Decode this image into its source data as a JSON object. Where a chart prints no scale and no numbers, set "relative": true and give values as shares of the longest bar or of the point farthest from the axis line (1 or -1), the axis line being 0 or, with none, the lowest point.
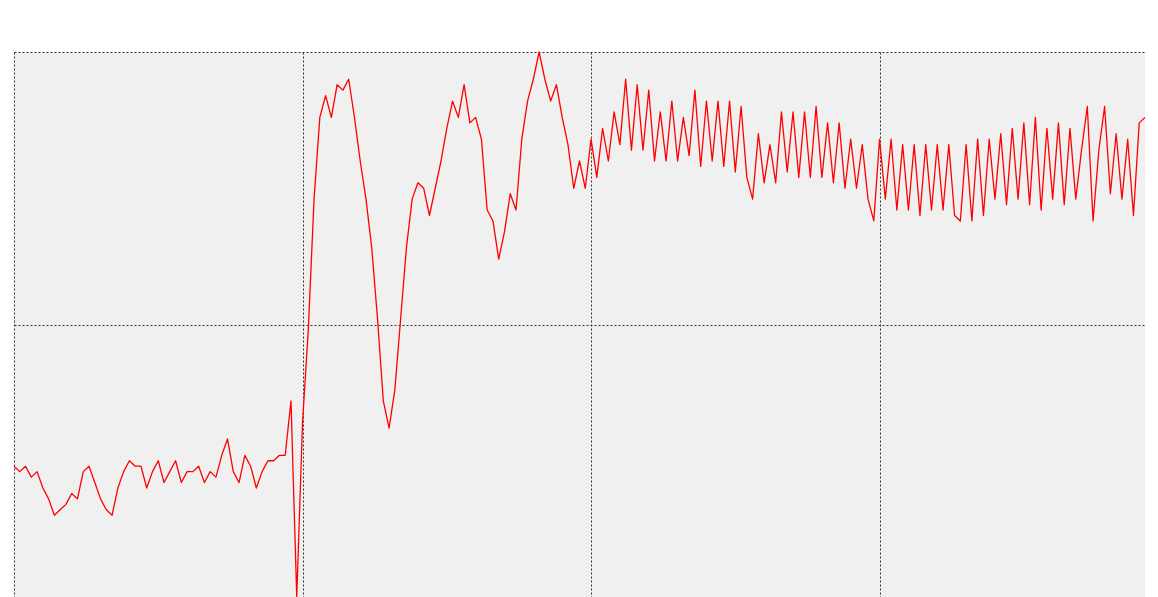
{
  "chart_data": {
    "type": "line",
    "relative": true,
    "grid": true,
    "tick_labels": false,
    "line_style": "solid",
    "categories": [
      null,
      null,
      null,
      null,
      null,
      null,
      null,
      null,
      null,
      null,
      null,
      null,
      null,
      null,
      null,
      null,
      null,
      null,
      null,
      null,
      null,
      null,
      null,
      null,
      null,
      null,
      null,
      null,
      null,
      null,
      null,
      null,
      null,
      null,
      null,
      null,
      null,
      null,
      null,
      null,
      null,
      null,
      null,
      null,
      null,
      null,
      null,
      null,
      null,
      null,
      null,
      null,
      null,
      null,
      null,
      null,
      null,
      null,
      null,
      null,
      null,
      null,
      null,
      null,
      null,
      null,
      null,
      null,
      null,
      null,
      null,
      null,
      null,
      null,
      null,
      null,
      null,
      null,
      null,
      null,
      null,
      null,
      null,
      null,
      null,
      null,
      null,
      null,
      null,
      null,
      null,
      null,
      null,
      null,
      null,
      null,
      null,
      null,
      null,
      null,
      null,
      null,
      null,
      null,
      null,
      null,
      null,
      null,
      null,
      null,
      null,
      null,
      null,
      null,
      null,
      null,
      null,
      null,
      null,
      null,
      null,
      null,
      null,
      null,
      null,
      null,
      null,
      null,
      null,
      null,
      null,
      null,
      null,
      null,
      null,
      null,
      null,
      null,
      null,
      null,
      null,
      null,
      null,
      null,
      null,
      null,
      null,
      null,
      null,
      null,
      null,
      null,
      null,
      null,
      null,
      null,
      null,
      null,
      null,
      null,
      null,
      null,
      null,
      null,
      null,
      null,
      null,
      null,
      null,
      null,
      null,
      null,
      null,
      null,
      null,
      null,
      null,
      null,
      null,
      null,
      null,
      null,
      null,
      null,
      null,
      null,
      null,
      null,
      null,
      null,
      null,
      null,
      null,
      null,
      null,
      null,
      null
    ],
    "series": [
      {
        "color": "#ff0000",
        "values": [
          0.24,
          0.23,
          0.24,
          0.22,
          0.23,
          0.2,
          0.18,
          0.15,
          0.16,
          0.17,
          0.19,
          0.18,
          0.23,
          0.24,
          0.21,
          0.18,
          0.16,
          0.15,
          0.2,
          0.23,
          0.25,
          0.24,
          0.24,
          0.2,
          0.23,
          0.25,
          0.21,
          0.23,
          0.25,
          0.21,
          0.23,
          0.23,
          0.24,
          0.21,
          0.23,
          0.22,
          0.26,
          0.29,
          0.23,
          0.21,
          0.26,
          0.24,
          0.2,
          0.23,
          0.25,
          0.25,
          0.26,
          0.26,
          0.36,
          0,
          0.32,
          0.49,
          0.73,
          0.88,
          0.92,
          0.88,
          0.94,
          0.93,
          0.95,
          0.88,
          0.8,
          0.73,
          0.64,
          0.51,
          0.36,
          0.31,
          0.38,
          0.51,
          0.64,
          0.73,
          0.76,
          0.75,
          0.7,
          0.75,
          0.8,
          0.86,
          0.91,
          0.88,
          0.94,
          0.87,
          0.88,
          0.84,
          0.71,
          0.69,
          0.62,
          0.67,
          0.74,
          0.71,
          0.84,
          0.91,
          0.95,
          1,
          0.95,
          0.91,
          0.94,
          0.88,
          0.83,
          0.75,
          0.8,
          0.75,
          0.84,
          0.77,
          0.86,
          0.8,
          0.89,
          0.83,
          0.95,
          0.82,
          0.94,
          0.82,
          0.93,
          0.8,
          0.89,
          0.8,
          0.91,
          0.8,
          0.88,
          0.81,
          0.93,
          0.79,
          0.91,
          0.8,
          0.91,
          0.79,
          0.91,
          0.78,
          0.9,
          0.77,
          0.73,
          0.85,
          0.76,
          0.83,
          0.76,
          0.89,
          0.78,
          0.89,
          0.77,
          0.89,
          0.77,
          0.9,
          0.77,
          0.87,
          0.76,
          0.87,
          0.75,
          0.84,
          0.75,
          0.83,
          0.73,
          0.69,
          0.84,
          0.73,
          0.84,
          0.71,
          0.83,
          0.71,
          0.83,
          0.7,
          0.83,
          0.71,
          0.83,
          0.71,
          0.83,
          0.7,
          0.69,
          0.83,
          0.69,
          0.84,
          0.7,
          0.84,
          0.73,
          0.85,
          0.72,
          0.86,
          0.73,
          0.87,
          0.72,
          0.88,
          0.71,
          0.86,
          0.73,
          0.87,
          0.72,
          0.86,
          0.73,
          0.82,
          0.9,
          0.69,
          0.82,
          0.9,
          0.74,
          0.85,
          0.73,
          0.84,
          0.7,
          0.87,
          0.88
        ]
      }
    ]
  }
}
